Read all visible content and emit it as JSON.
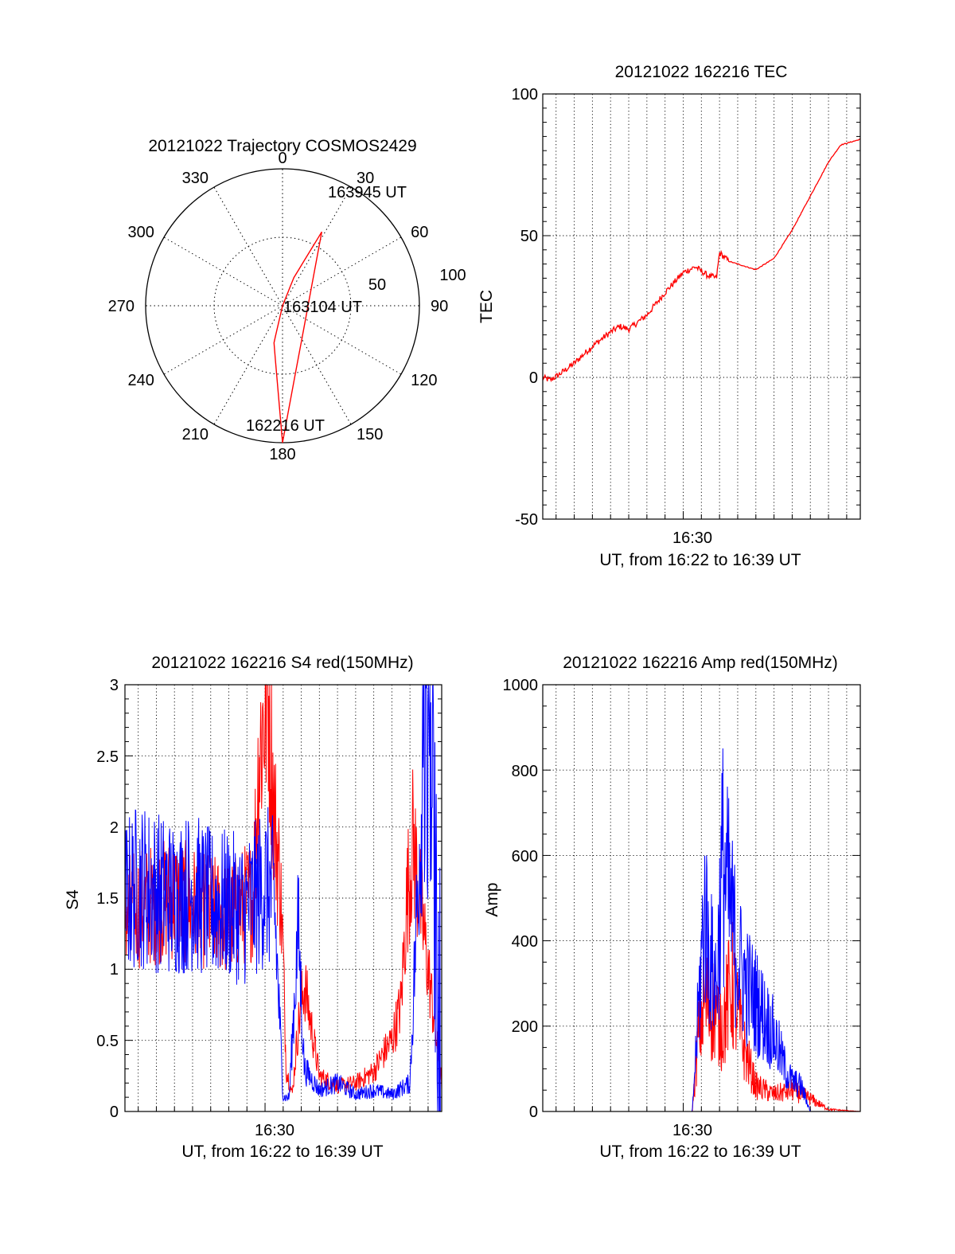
{
  "chart_data": [
    {
      "id": "trajectory",
      "type": "polar",
      "title": "20121022 Trajectory COSMOS2429",
      "angle_labels": [
        "0",
        "30",
        "60",
        "90",
        "120",
        "150",
        "180",
        "210",
        "240",
        "270",
        "300",
        "330"
      ],
      "radius_labels": [
        "50",
        "100"
      ],
      "elevation_rings": [
        50,
        100
      ],
      "start_label": "162216 UT",
      "mid_label": "163104 UT",
      "end_label": "163945 UT",
      "series": [
        {
          "color": "#ff0000",
          "points": [
            [
              200,
              92
            ],
            [
              193,
              65
            ],
            [
              180,
              0
            ],
            [
              28,
              35
            ],
            [
              22,
              70
            ],
            [
              20,
              100
            ]
          ]
        }
      ]
    },
    {
      "id": "tec",
      "type": "line",
      "title": "20121022 162216 TEC",
      "xlabel": "UT, from 16:22 to 16:39 UT",
      "ylabel": "TEC",
      "x_tick_labels": [
        "16:30"
      ],
      "y_tick_labels": [
        "-50",
        "0",
        "50",
        "100"
      ],
      "ylim": [
        -50,
        100
      ],
      "grid": true,
      "series": [
        {
          "color": "#ff0000",
          "x": [
            "16:22:16",
            "16:22:40",
            "16:23:10",
            "16:24:00",
            "16:25:00",
            "16:26:00",
            "16:26:30",
            "16:27:00",
            "16:28:00",
            "16:29:00",
            "16:30:00",
            "16:30:40",
            "16:31:20",
            "16:31:50",
            "16:32:00",
            "16:32:30",
            "16:33:00",
            "16:34:00",
            "16:35:00",
            "16:36:00",
            "16:37:00",
            "16:38:00",
            "16:38:40",
            "16:39:45"
          ],
          "y": [
            0,
            -1,
            1,
            5,
            11,
            16,
            18,
            17,
            22,
            30,
            37,
            39,
            36,
            35,
            44,
            41,
            40,
            38,
            42,
            52,
            64,
            76,
            82,
            84
          ]
        }
      ]
    },
    {
      "id": "s4",
      "type": "line",
      "title": "20121022 162216 S4 red(150MHz)",
      "xlabel": "UT, from 16:22 to 16:39 UT",
      "ylabel": "S4",
      "x_tick_labels": [
        "16:30"
      ],
      "y_tick_labels": [
        "0",
        "0.5",
        "1",
        "1.5",
        "2",
        "2.5",
        "3"
      ],
      "ylim": [
        0,
        3
      ],
      "grid": true,
      "series": [
        {
          "color": "#ff0000",
          "x": [
            "16:22:16",
            "16:25:00",
            "16:26:00",
            "16:28:00",
            "16:28:50",
            "16:29:20",
            "16:29:40",
            "16:30:10",
            "16:30:30",
            "16:30:50",
            "16:31:00",
            "16:31:10",
            "16:31:30",
            "16:31:50",
            "16:32:10",
            "16:33:00",
            "16:34:00",
            "16:35:00",
            "16:36:00",
            "16:36:30",
            "16:37:00",
            "16:37:30",
            "16:37:50",
            "16:38:10",
            "16:39:45"
          ],
          "y": [
            1.4,
            1.5,
            1.45,
            1.35,
            1.45,
            1.5,
            2.5,
            3.0,
            2.1,
            1.6,
            1.1,
            0.3,
            0.12,
            0.6,
            0.9,
            0.25,
            0.18,
            0.2,
            0.28,
            0.4,
            0.5,
            0.75,
            1.5,
            1.9,
            0.2
          ]
        },
        {
          "color": "#0000ff",
          "x": [
            "16:22:16",
            "16:23:00",
            "16:24:00",
            "16:25:00",
            "16:26:00",
            "16:27:00",
            "16:28:00",
            "16:28:50",
            "16:29:30",
            "16:30:00",
            "16:30:30",
            "16:31:00",
            "16:31:20",
            "16:31:50",
            "16:32:10",
            "16:33:00",
            "16:34:00",
            "16:35:00",
            "16:36:00",
            "16:37:00",
            "16:38:00",
            "16:38:30",
            "16:39:00",
            "16:39:45"
          ],
          "y": [
            1.5,
            1.6,
            1.55,
            1.5,
            1.55,
            1.45,
            1.45,
            1.4,
            1.5,
            1.6,
            1.5,
            0.1,
            0.1,
            1.3,
            0.3,
            0.15,
            0.2,
            0.12,
            0.15,
            0.12,
            0.2,
            1.8,
            3.0,
            0.05
          ]
        }
      ]
    },
    {
      "id": "amp",
      "type": "line",
      "title": "20121022 162216 Amp red(150MHz)",
      "xlabel": "UT, from 16:22 to 16:39 UT",
      "ylabel": "Amp",
      "x_tick_labels": [
        "16:30"
      ],
      "y_tick_labels": [
        "0",
        "200",
        "400",
        "600",
        "800",
        "1000"
      ],
      "ylim": [
        0,
        1000
      ],
      "grid": true,
      "series": [
        {
          "color": "#ff0000",
          "x": [
            "16:22:16",
            "16:30:30",
            "16:30:50",
            "16:31:10",
            "16:31:40",
            "16:32:10",
            "16:32:40",
            "16:33:20",
            "16:34:00",
            "16:35:00",
            "16:36:00",
            "16:37:00",
            "16:38:00",
            "16:39:45"
          ],
          "y": [
            0,
            0,
            180,
            260,
            240,
            200,
            300,
            150,
            60,
            40,
            50,
            30,
            5,
            0
          ]
        },
        {
          "color": "#0000ff",
          "x": [
            "16:22:16",
            "16:30:30",
            "16:30:50",
            "16:31:10",
            "16:31:30",
            "16:31:50",
            "16:32:10",
            "16:32:30",
            "16:33:00",
            "16:33:30",
            "16:34:00",
            "16:35:00",
            "16:35:40",
            "16:36:00",
            "16:36:30",
            "16:37:00",
            "16:39:45"
          ],
          "y": [
            0,
            0,
            200,
            400,
            300,
            250,
            500,
            420,
            300,
            250,
            220,
            150,
            80,
            60,
            50,
            0,
            0
          ]
        }
      ]
    }
  ]
}
